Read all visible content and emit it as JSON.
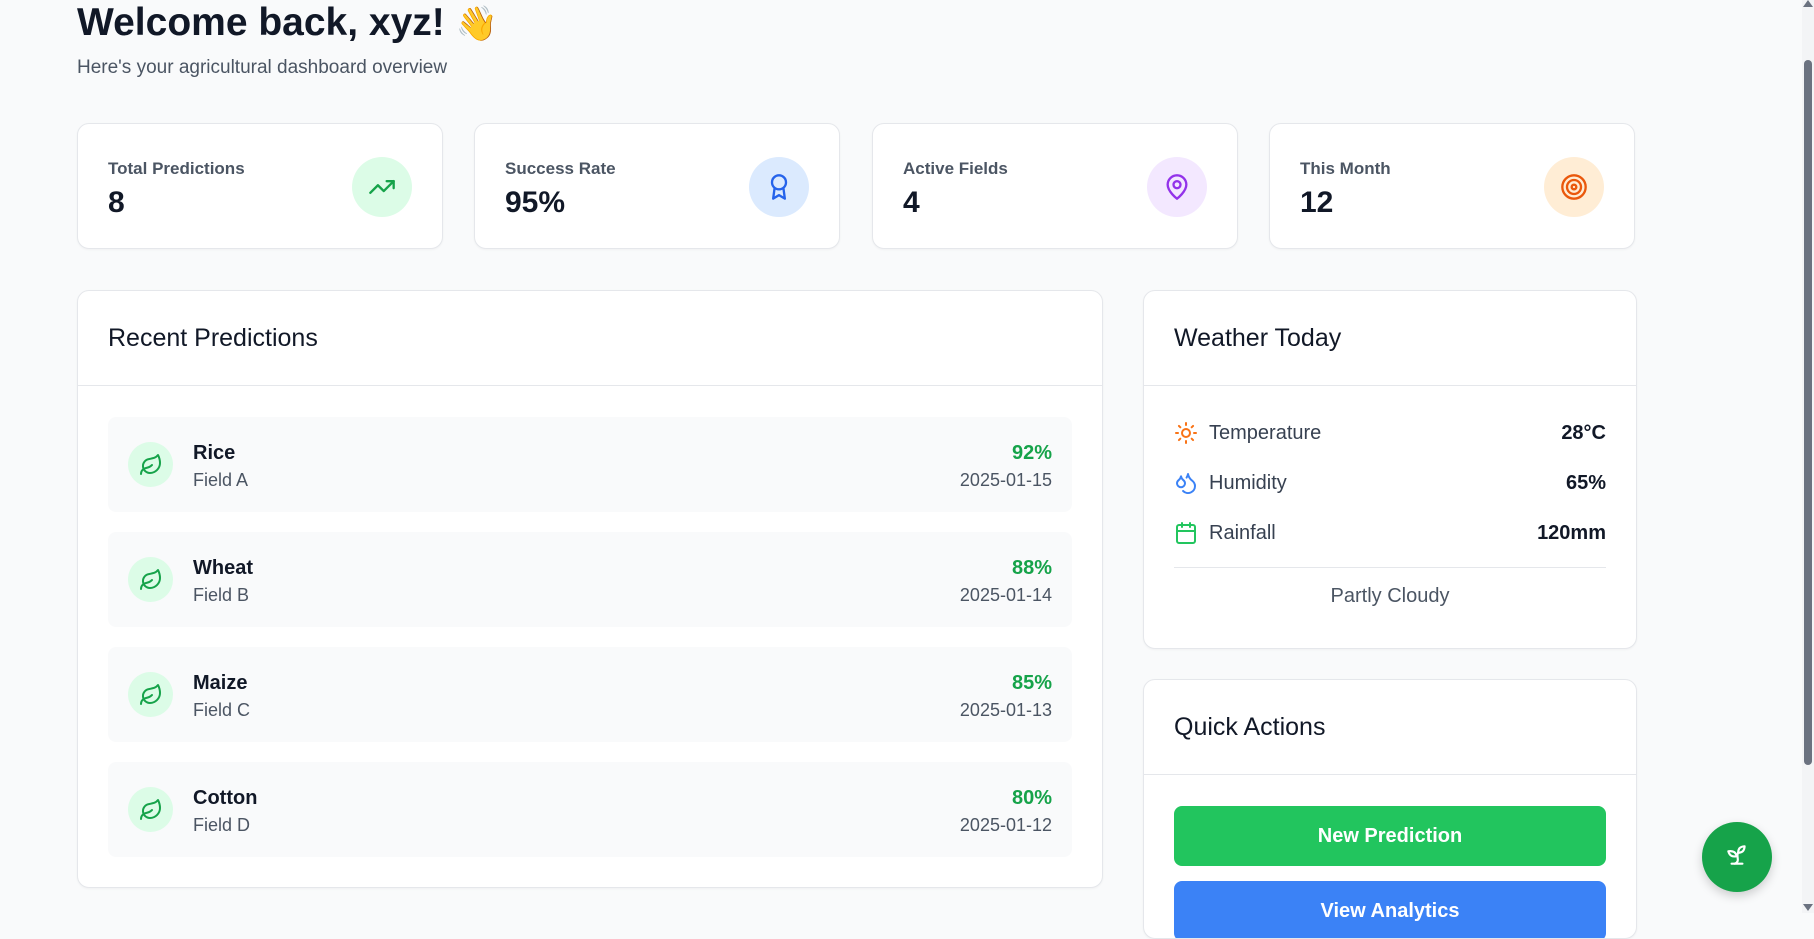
{
  "header": {
    "welcome": "Welcome back, xyz!",
    "wave_emoji": "👋",
    "subtitle": "Here's your agricultural dashboard overview"
  },
  "stats": [
    {
      "label": "Total Predictions",
      "value": "8",
      "icon": "trending-up-icon",
      "color": "#16a34a",
      "bg": "#dcfce7"
    },
    {
      "label": "Success Rate",
      "value": "95%",
      "icon": "award-icon",
      "color": "#2563eb",
      "bg": "#dbeafe"
    },
    {
      "label": "Active Fields",
      "value": "4",
      "icon": "map-pin-icon",
      "color": "#9333ea",
      "bg": "#f3e8ff"
    },
    {
      "label": "This Month",
      "value": "12",
      "icon": "target-icon",
      "color": "#ea580c",
      "bg": "#ffedd5"
    }
  ],
  "recent": {
    "title": "Recent Predictions",
    "items": [
      {
        "crop": "Rice",
        "field": "Field A",
        "confidence": "92%",
        "date": "2025-01-15"
      },
      {
        "crop": "Wheat",
        "field": "Field B",
        "confidence": "88%",
        "date": "2025-01-14"
      },
      {
        "crop": "Maize",
        "field": "Field C",
        "confidence": "85%",
        "date": "2025-01-13"
      },
      {
        "crop": "Cotton",
        "field": "Field D",
        "confidence": "80%",
        "date": "2025-01-12"
      }
    ]
  },
  "weather": {
    "title": "Weather Today",
    "rows": [
      {
        "label": "Temperature",
        "value": "28°C",
        "icon": "sun-icon"
      },
      {
        "label": "Humidity",
        "value": "65%",
        "icon": "droplets-icon"
      },
      {
        "label": "Rainfall",
        "value": "120mm",
        "icon": "calendar-icon"
      }
    ],
    "condition": "Partly Cloudy"
  },
  "quick_actions": {
    "title": "Quick Actions",
    "new_prediction": "New Prediction",
    "view_analytics": "View Analytics"
  },
  "fab": {
    "icon": "sprout-icon"
  }
}
